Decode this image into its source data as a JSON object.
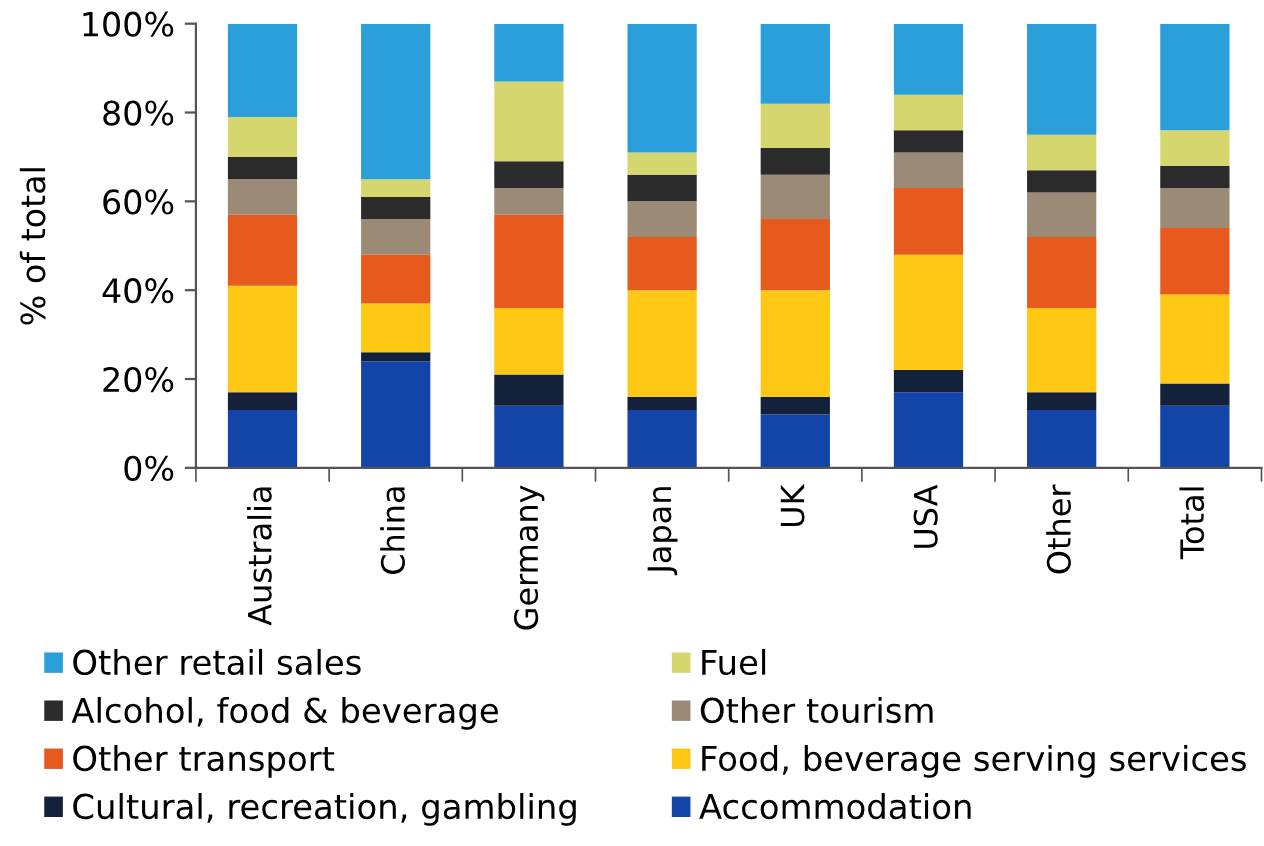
{
  "chart_data": {
    "type": "bar",
    "stacked": true,
    "ylabel": "% of total",
    "categories": [
      "Australia",
      "China",
      "Germany",
      "Japan",
      "UK",
      "USA",
      "Other",
      "Total"
    ],
    "series": [
      {
        "name": "Accommodation",
        "color": "#1344a8",
        "values": [
          13,
          24,
          14,
          13,
          12,
          17,
          13,
          14
        ]
      },
      {
        "name": "Cultural, recreation, gambling",
        "color": "#13213a",
        "values": [
          4,
          2,
          7,
          3,
          4,
          5,
          4,
          5
        ]
      },
      {
        "name": "Food, beverage serving services",
        "color": "#ffc815",
        "values": [
          24,
          11,
          15,
          24,
          24,
          26,
          19,
          20
        ]
      },
      {
        "name": "Other transport",
        "color": "#e65a1e",
        "values": [
          16,
          11,
          21,
          12,
          16,
          15,
          16,
          15
        ]
      },
      {
        "name": "Other tourism",
        "color": "#9a8a76",
        "values": [
          8,
          8,
          6,
          8,
          10,
          8,
          10,
          9
        ]
      },
      {
        "name": "Alcohol, food & beverage",
        "color": "#2b2b2b",
        "values": [
          5,
          5,
          6,
          6,
          6,
          5,
          5,
          5
        ]
      },
      {
        "name": "Fuel",
        "color": "#d6d66e",
        "values": [
          9,
          4,
          18,
          5,
          10,
          8,
          8,
          8
        ]
      },
      {
        "name": "Other retail sales",
        "color": "#2b9fd9",
        "values": [
          21,
          35,
          13,
          29,
          18,
          16,
          25,
          24
        ]
      }
    ],
    "ylim": [
      0,
      100
    ],
    "yticks": [
      {
        "value": 0,
        "label": "0%"
      },
      {
        "value": 20,
        "label": "20%"
      },
      {
        "value": 40,
        "label": "40%"
      },
      {
        "value": 60,
        "label": "60%"
      },
      {
        "value": 80,
        "label": "80%"
      },
      {
        "value": 100,
        "label": "100%"
      }
    ],
    "legend": "bottom"
  }
}
